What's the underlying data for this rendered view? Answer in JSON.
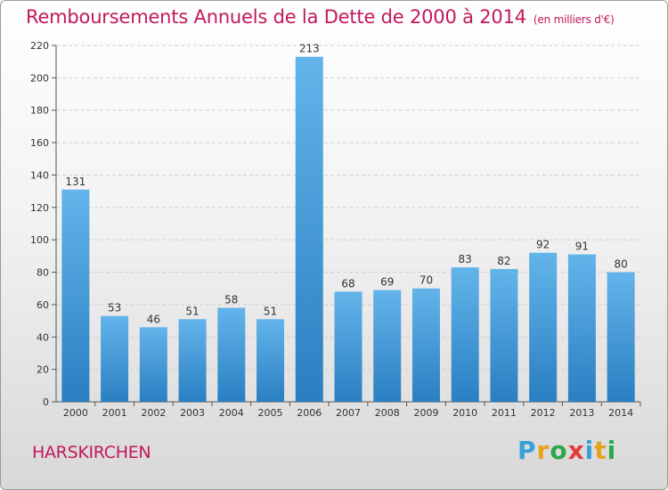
{
  "title": "Remboursements Annuels de la Dette de 2000 à 2014",
  "unit": "(en milliers d'€)",
  "location": "HARSKIRCHEN",
  "logo": {
    "letters": [
      "P",
      "r",
      "o",
      "x",
      "i",
      "t",
      "i"
    ],
    "colors": [
      "#3aa0d8",
      "#e8a21a",
      "#2aa84a",
      "#e23b3b",
      "#3aa0d8",
      "#e8a21a",
      "#2aa84a"
    ]
  },
  "chart_data": {
    "type": "bar",
    "categories": [
      "2000",
      "2001",
      "2002",
      "2003",
      "2004",
      "2005",
      "2006",
      "2007",
      "2008",
      "2009",
      "2010",
      "2011",
      "2012",
      "2013",
      "2014"
    ],
    "values": [
      131,
      53,
      46,
      51,
      58,
      51,
      213,
      68,
      69,
      70,
      83,
      82,
      92,
      91,
      80
    ],
    "ylim": [
      0,
      220
    ],
    "yticks": [
      0,
      20,
      40,
      60,
      80,
      100,
      120,
      140,
      160,
      180,
      200,
      220
    ],
    "grid": true,
    "bar_color": "#4a9fdc"
  }
}
